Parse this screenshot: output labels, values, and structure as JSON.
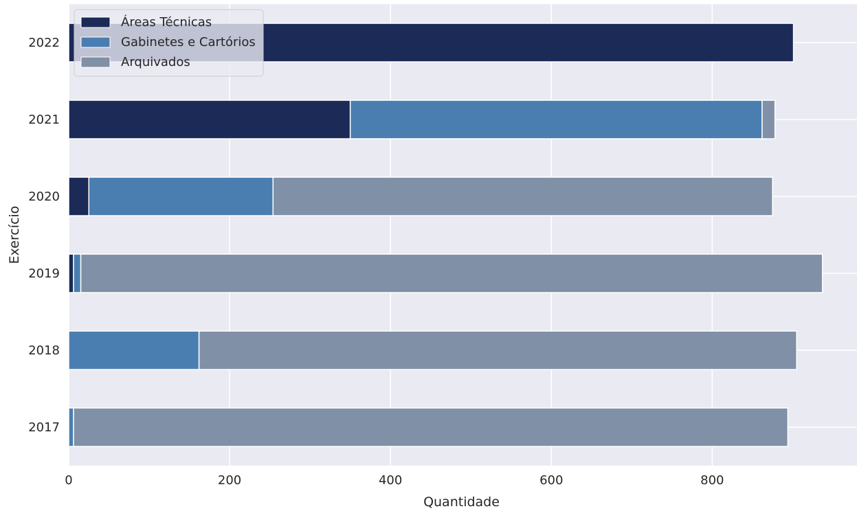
{
  "chart_data": {
    "type": "bar",
    "orientation": "horizontal",
    "stacked": true,
    "categories": [
      "2017",
      "2018",
      "2019",
      "2020",
      "2021",
      "2022"
    ],
    "series": [
      {
        "name": "Áreas Técnicas",
        "color": "#1b2a57",
        "values": [
          0,
          0,
          6,
          25,
          350,
          901
        ]
      },
      {
        "name": "Gabinetes e Cartórios",
        "color": "#4a7eb0",
        "values": [
          6,
          162,
          9,
          229,
          512,
          0
        ]
      },
      {
        "name": "Arquivados",
        "color": "#8090a6",
        "values": [
          888,
          743,
          922,
          621,
          16,
          0
        ]
      }
    ],
    "xlabel": "Quantidade",
    "ylabel": "Exercício",
    "xlim": [
      0,
      980
    ],
    "xticks": [
      0,
      200,
      400,
      600,
      800
    ],
    "grid": true,
    "legend_position": "top-left",
    "background": "#eaeaf2"
  }
}
